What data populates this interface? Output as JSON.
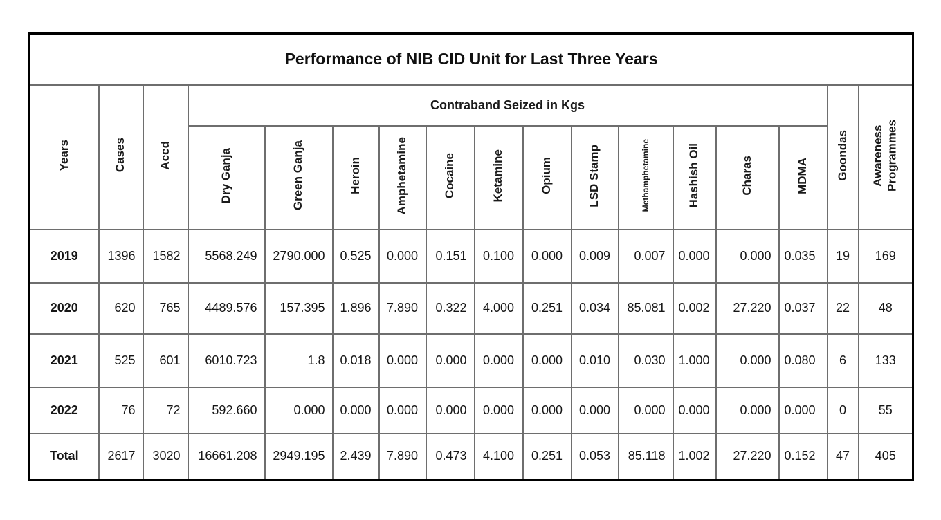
{
  "chart_data": {
    "type": "table",
    "title": "Performance of NIB CID Unit for Last Three Years",
    "group_header": "Contraband Seized in Kgs",
    "columns": [
      "Years",
      "Cases",
      "Accd",
      "Dry Ganja",
      "Green Ganja",
      "Heroin",
      "Amphetamine",
      "Cocaine",
      "Ketamine",
      "Opium",
      "LSD Stamp",
      "Methamphetamine",
      "Hashish Oil",
      "Charas",
      "MDMA",
      "Goondas",
      "Awareness Programmes"
    ],
    "rows": [
      [
        "2019",
        "1396",
        "1582",
        "5568.249",
        "2790.000",
        "0.525",
        "0.000",
        "0.151",
        "0.100",
        "0.000",
        "0.009",
        "0.007",
        "0.000",
        "0.000",
        "0.035",
        "19",
        "169"
      ],
      [
        "2020",
        "620",
        "765",
        "4489.576",
        "157.395",
        "1.896",
        "7.890",
        "0.322",
        "4.000",
        "0.251",
        "0.034",
        "85.081",
        "0.002",
        "27.220",
        "0.037",
        "22",
        "48"
      ],
      [
        "2021",
        "525",
        "601",
        "6010.723",
        "1.8",
        "0.018",
        "0.000",
        "0.000",
        "0.000",
        "0.000",
        "0.010",
        "0.030",
        "1.000",
        "0.000",
        "0.080",
        "6",
        "133"
      ],
      [
        "2022",
        "76",
        "72",
        "592.660",
        "0.000",
        "0.000",
        "0.000",
        "0.000",
        "0.000",
        "0.000",
        "0.000",
        "0.000",
        "0.000",
        "0.000",
        "0.000",
        "0",
        "55"
      ],
      [
        "Total",
        "2617",
        "3020",
        "16661.208",
        "2949.195",
        "2.439",
        "7.890",
        "0.473",
        "4.100",
        "0.251",
        "0.053",
        "85.118",
        "1.002",
        "27.220",
        "0.152",
        "47",
        "405"
      ]
    ]
  },
  "colors": {
    "outer_border": "#000000",
    "inner_border": "#6e6e6e",
    "text": "#161616",
    "background": "#ffffff"
  }
}
